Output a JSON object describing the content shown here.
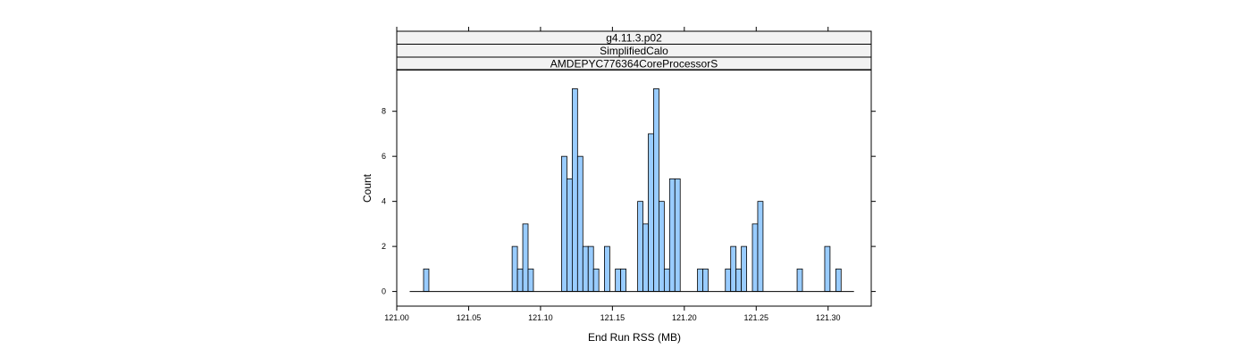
{
  "chart_data": {
    "type": "bar",
    "strips": [
      "g4.11.3.p02",
      "SimplifiedCalo",
      "AMDEPYC776364CoreProcessorS"
    ],
    "xlabel": "End Run RSS (MB)",
    "ylabel": "Count",
    "xlim": [
      121.0,
      121.33
    ],
    "ylim": [
      -0.65,
      9.85
    ],
    "x_ticks": [
      "121.00",
      "121.05",
      "121.10",
      "121.15",
      "121.20",
      "121.25",
      "121.30"
    ],
    "y_ticks": [
      "0",
      "2",
      "4",
      "6",
      "8"
    ],
    "bin_width": 0.0037,
    "baseline_range": [
      121.009,
      121.318
    ],
    "bars": [
      {
        "x": 121.0205,
        "count": 1
      },
      {
        "x": 121.0821,
        "count": 2
      },
      {
        "x": 121.0858,
        "count": 1
      },
      {
        "x": 121.0895,
        "count": 3
      },
      {
        "x": 121.0932,
        "count": 1
      },
      {
        "x": 121.1165,
        "count": 6
      },
      {
        "x": 121.1202,
        "count": 5
      },
      {
        "x": 121.1239,
        "count": 9
      },
      {
        "x": 121.1276,
        "count": 6
      },
      {
        "x": 121.1313,
        "count": 2
      },
      {
        "x": 121.135,
        "count": 2
      },
      {
        "x": 121.1387,
        "count": 1
      },
      {
        "x": 121.1463,
        "count": 2
      },
      {
        "x": 121.1539,
        "count": 1
      },
      {
        "x": 121.1576,
        "count": 1
      },
      {
        "x": 121.1694,
        "count": 4
      },
      {
        "x": 121.1731,
        "count": 3
      },
      {
        "x": 121.1768,
        "count": 7
      },
      {
        "x": 121.1805,
        "count": 9
      },
      {
        "x": 121.1842,
        "count": 4
      },
      {
        "x": 121.1879,
        "count": 1
      },
      {
        "x": 121.1916,
        "count": 5
      },
      {
        "x": 121.1953,
        "count": 5
      },
      {
        "x": 121.211,
        "count": 1
      },
      {
        "x": 121.2147,
        "count": 1
      },
      {
        "x": 121.2304,
        "count": 1
      },
      {
        "x": 121.2341,
        "count": 2
      },
      {
        "x": 121.2378,
        "count": 1
      },
      {
        "x": 121.2415,
        "count": 2
      },
      {
        "x": 121.2492,
        "count": 3
      },
      {
        "x": 121.2529,
        "count": 4
      },
      {
        "x": 121.2803,
        "count": 1
      },
      {
        "x": 121.2995,
        "count": 2
      },
      {
        "x": 121.3072,
        "count": 1
      }
    ],
    "colors": {
      "bar_fill": "#99ccff",
      "bar_stroke": "#000000",
      "strip_fill": "#f2f2f2",
      "frame": "#000000"
    },
    "grid": false,
    "legend": "none"
  }
}
